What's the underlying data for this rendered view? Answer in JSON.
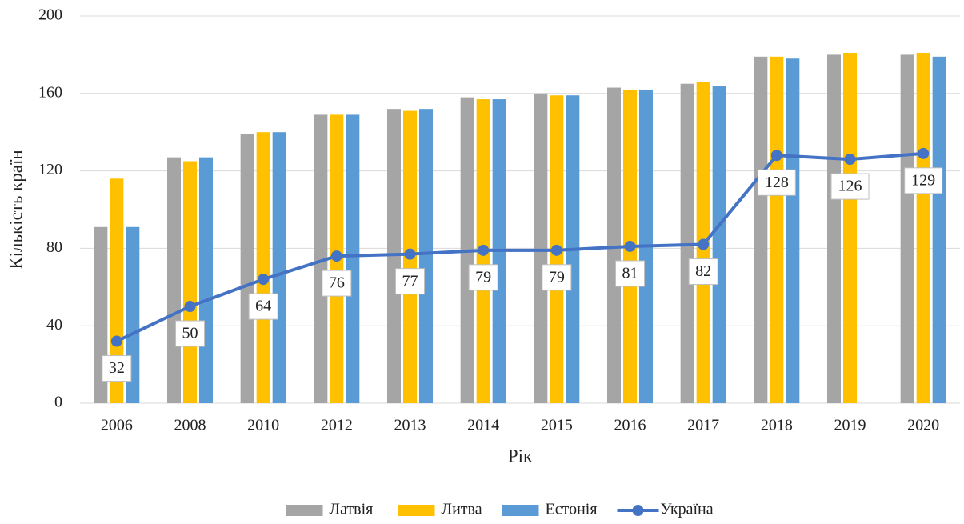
{
  "chart_data": {
    "type": "bar",
    "xlabel": "Рік",
    "ylabel": "Кількість країн",
    "categories": [
      "2006",
      "2008",
      "2010",
      "2012",
      "2013",
      "2014",
      "2015",
      "2016",
      "2017",
      "2018",
      "2019",
      "2020"
    ],
    "series": [
      {
        "name": "Латвія",
        "color": "#a5a5a5",
        "values": [
          91,
          127,
          139,
          149,
          152,
          158,
          160,
          163,
          165,
          179,
          180,
          180
        ]
      },
      {
        "name": "Литва",
        "color": "#ffc000",
        "values": [
          116,
          125,
          140,
          149,
          151,
          157,
          159,
          162,
          166,
          179,
          181,
          181
        ]
      },
      {
        "name": "Естонія",
        "color": "#5b9bd5",
        "values": [
          91,
          127,
          140,
          149,
          152,
          157,
          159,
          162,
          164,
          178,
          null,
          179
        ]
      },
      {
        "name": "Україна",
        "color": "#4472c4",
        "type": "line",
        "data_labels": true,
        "values": [
          32,
          50,
          64,
          76,
          77,
          79,
          79,
          81,
          82,
          128,
          126,
          129
        ]
      }
    ],
    "ylim": [
      0,
      200
    ],
    "yticks": [
      0,
      40,
      80,
      120,
      160,
      200
    ],
    "grid": true,
    "legend": "bottom"
  }
}
